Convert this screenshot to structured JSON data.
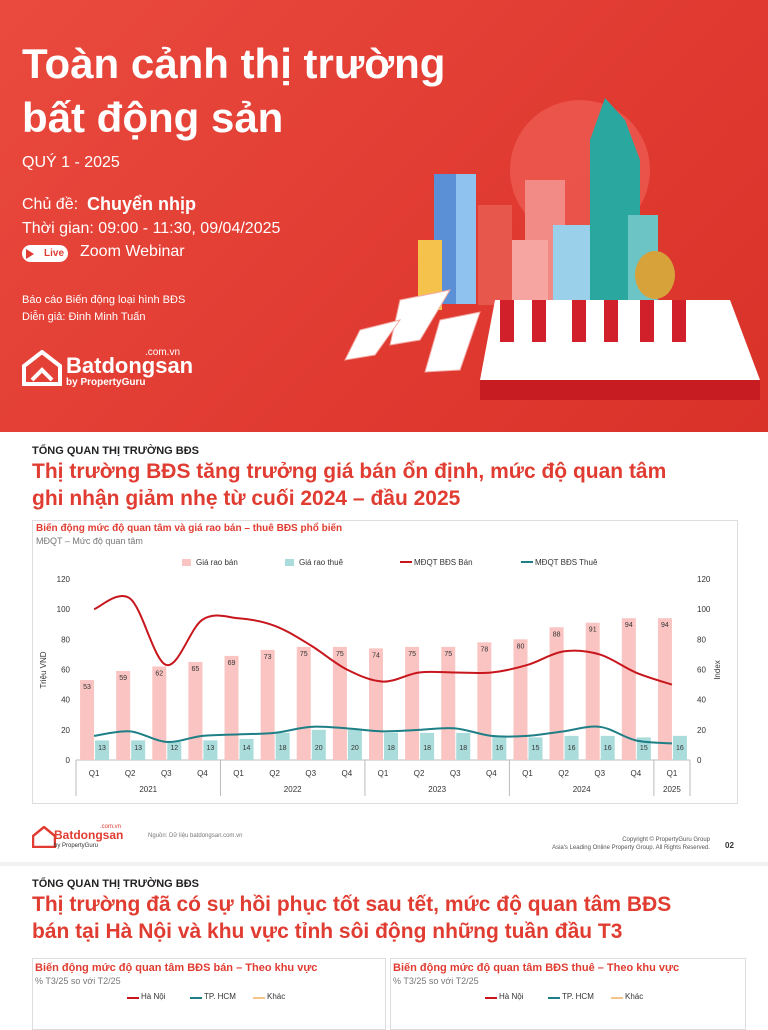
{
  "banner": {
    "title_line1": "Toàn cảnh thị trường",
    "title_line2": "bất động sản",
    "quarter": "QUÝ 1 - 2025",
    "topic_label": "Chủ đề:",
    "topic": "Chuyển nhịp",
    "time": "Thời gian: 09:00 - 11:30, 09/04/2025",
    "live": "Live",
    "webinar": "Zoom Webinar",
    "report": "Báo cáo Biến động loại hình BĐS",
    "speaker": "Diễn giả: Đinh Minh Tuấn",
    "logo": {
      "domain": ".com.vn",
      "name": "Batdongsan",
      "by": "by PropertyGuru"
    }
  },
  "slide2": {
    "section": "TỔNG QUAN THỊ TRƯỜNG BĐS",
    "heading_line1": "Thị trường BĐS tăng trưởng giá bán ổn định, mức độ quan tâm",
    "heading_line2": "ghi nhận giảm nhẹ từ cuối 2024 – đầu 2025",
    "footer": {
      "source": "Nguồn: Dữ liệu batdongsan.com.vn",
      "copyright": "Copyright © PropertyGuru Group",
      "rights": "Asia's Leading Online Property Group. All Rights Reserved.",
      "page": "02"
    }
  },
  "chart_data": {
    "type": "bar-line",
    "title": "Biến động mức độ quan tâm và giá rao bán – thuê BĐS phổ biến",
    "subtitle": "MĐQT – Mức độ quan tâm",
    "ylabel": "Triệu VND",
    "y2label": "Index",
    "categories": [
      "Q1",
      "Q2",
      "Q3",
      "Q4",
      "Q1",
      "Q2",
      "Q3",
      "Q4",
      "Q1",
      "Q2",
      "Q3",
      "Q4",
      "Q1",
      "Q2",
      "Q3",
      "Q4",
      "Q1"
    ],
    "years": [
      "2021",
      "2022",
      "2023",
      "2024",
      "2025"
    ],
    "series": [
      {
        "name": "Giá rao bán",
        "kind": "bar",
        "color": "#f9c4c1",
        "values": [
          53,
          59,
          62,
          65,
          69,
          73,
          75,
          75,
          74,
          75,
          75,
          78,
          80,
          88,
          91,
          94,
          94
        ]
      },
      {
        "name": "Giá rao thuê",
        "kind": "bar",
        "color": "#a9dcdb",
        "values": [
          13,
          13,
          12,
          13,
          14,
          18,
          20,
          20,
          18,
          18,
          18,
          16,
          15,
          16,
          16,
          15,
          16
        ]
      },
      {
        "name": "MĐQT BĐS Bán",
        "kind": "line",
        "axis": "y2",
        "color": "#c8161d",
        "values": [
          100,
          107,
          63,
          93,
          94,
          89,
          76,
          60,
          52,
          58,
          58,
          58,
          63,
          72,
          70,
          58,
          50
        ]
      },
      {
        "name": "MĐQT BĐS Thuê",
        "kind": "line",
        "axis": "y2",
        "color": "#1e7f86",
        "values": [
          16,
          19,
          12,
          16,
          17,
          18,
          22,
          21,
          19,
          20,
          21,
          16,
          16,
          19,
          22,
          13,
          11
        ]
      }
    ],
    "ylim": [
      0,
      120
    ],
    "yticks": [
      0,
      20,
      40,
      60,
      80,
      100,
      120
    ],
    "y2lim": [
      0,
      120
    ],
    "y2ticks": [
      0,
      20,
      40,
      60,
      80,
      100,
      120
    ]
  },
  "slide3": {
    "section": "TỔNG QUAN THỊ TRƯỜNG BĐS",
    "heading_line1": "Thị trường đã có sự hồi phục tốt sau tết, mức độ quan tâm BĐS",
    "heading_line2": "bán tại Hà Nội và khu vực tỉnh sôi động những tuần đầu T3",
    "panels": [
      {
        "title": "Biến động mức độ quan tâm BĐS bán – Theo khu vực",
        "subtitle": "% T3/25 so với T2/25",
        "legend": [
          "Hà Nội",
          "TP. HCM",
          "Khác"
        ]
      },
      {
        "title": "Biến động mức độ quan tâm BĐS thuê – Theo khu vực",
        "subtitle": "% T3/25 so với T2/25",
        "legend": [
          "Hà Nội",
          "TP. HCM",
          "Khác"
        ]
      }
    ]
  }
}
